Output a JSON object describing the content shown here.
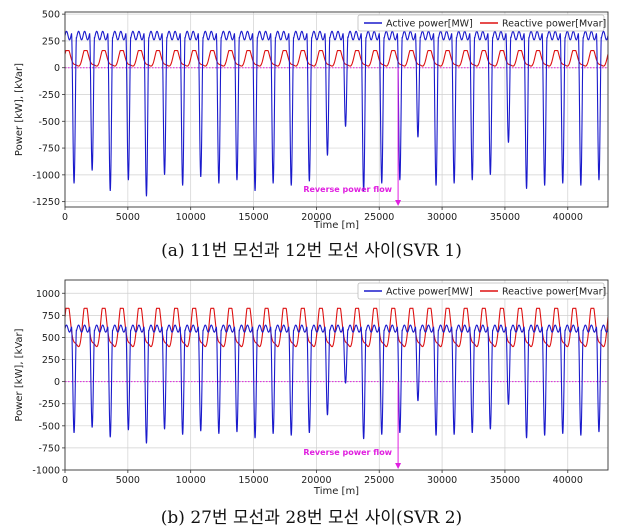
{
  "chart_data": [
    {
      "type": "line",
      "caption": "(a) 11번 모선과 12번 모선 사이(SVR 1)",
      "xlabel": "Time [m]",
      "ylabel": "Power [kW], [kVar]",
      "xlim": [
        0,
        43200
      ],
      "ylim": [
        -1300,
        520
      ],
      "xticks": [
        0,
        5000,
        10000,
        15000,
        20000,
        25000,
        30000,
        35000,
        40000
      ],
      "yticks": [
        -1250,
        -1000,
        -750,
        -500,
        -250,
        0,
        250,
        500
      ],
      "grid": true,
      "legend": "top-right",
      "period_minutes": 1440,
      "series": [
        {
          "name": "Active power[MW]",
          "color": "#1a1acc",
          "plateau": 300,
          "daily_min": [
            -1080,
            -960,
            -1150,
            -1050,
            -1200,
            -1000,
            -1100,
            -1020,
            -1080,
            -1050,
            -1150,
            -1080,
            -1100,
            -1060,
            -820,
            -550,
            -1150,
            -1080,
            -1050,
            -650,
            -1100,
            -1080,
            -1050,
            -1000,
            -700,
            -1130,
            -1100,
            -1080,
            -1100,
            -1050
          ]
        },
        {
          "name": "Reactive power[Mvar]",
          "color": "#dd1111",
          "peak": 160,
          "trough": 0
        }
      ],
      "annotations": [
        {
          "text": "Reverse power flow",
          "x": 26500,
          "y": 0,
          "color": "#e020e0"
        }
      ]
    },
    {
      "type": "line",
      "caption": "(b) 27번 모선과 28번 모선 사이(SVR 2)",
      "xlabel": "Time [m]",
      "ylabel": "Power [kW], [kVar]",
      "xlim": [
        0,
        43200
      ],
      "ylim": [
        -1000,
        1150
      ],
      "xticks": [
        0,
        5000,
        10000,
        15000,
        20000,
        25000,
        30000,
        35000,
        40000
      ],
      "yticks": [
        -1000,
        -750,
        -500,
        -250,
        0,
        250,
        500,
        750,
        1000
      ],
      "grid": true,
      "legend": "top-right",
      "period_minutes": 1440,
      "series": [
        {
          "name": "Active power[MW]",
          "color": "#1a1acc",
          "plateau": 600,
          "daily_min": [
            -580,
            -520,
            -630,
            -550,
            -700,
            -540,
            -600,
            -560,
            -590,
            -570,
            -640,
            -590,
            -610,
            -580,
            -380,
            -20,
            -650,
            -600,
            -580,
            -220,
            -610,
            -600,
            -580,
            -540,
            -260,
            -640,
            -610,
            -590,
            -610,
            -570
          ]
        },
        {
          "name": "Reactive power[Mvar]",
          "color": "#dd1111",
          "peak": 830,
          "trough": 350
        }
      ],
      "annotations": [
        {
          "text": "Reverse power flow",
          "x": 26500,
          "y": 0,
          "color": "#e020e0"
        }
      ]
    }
  ]
}
